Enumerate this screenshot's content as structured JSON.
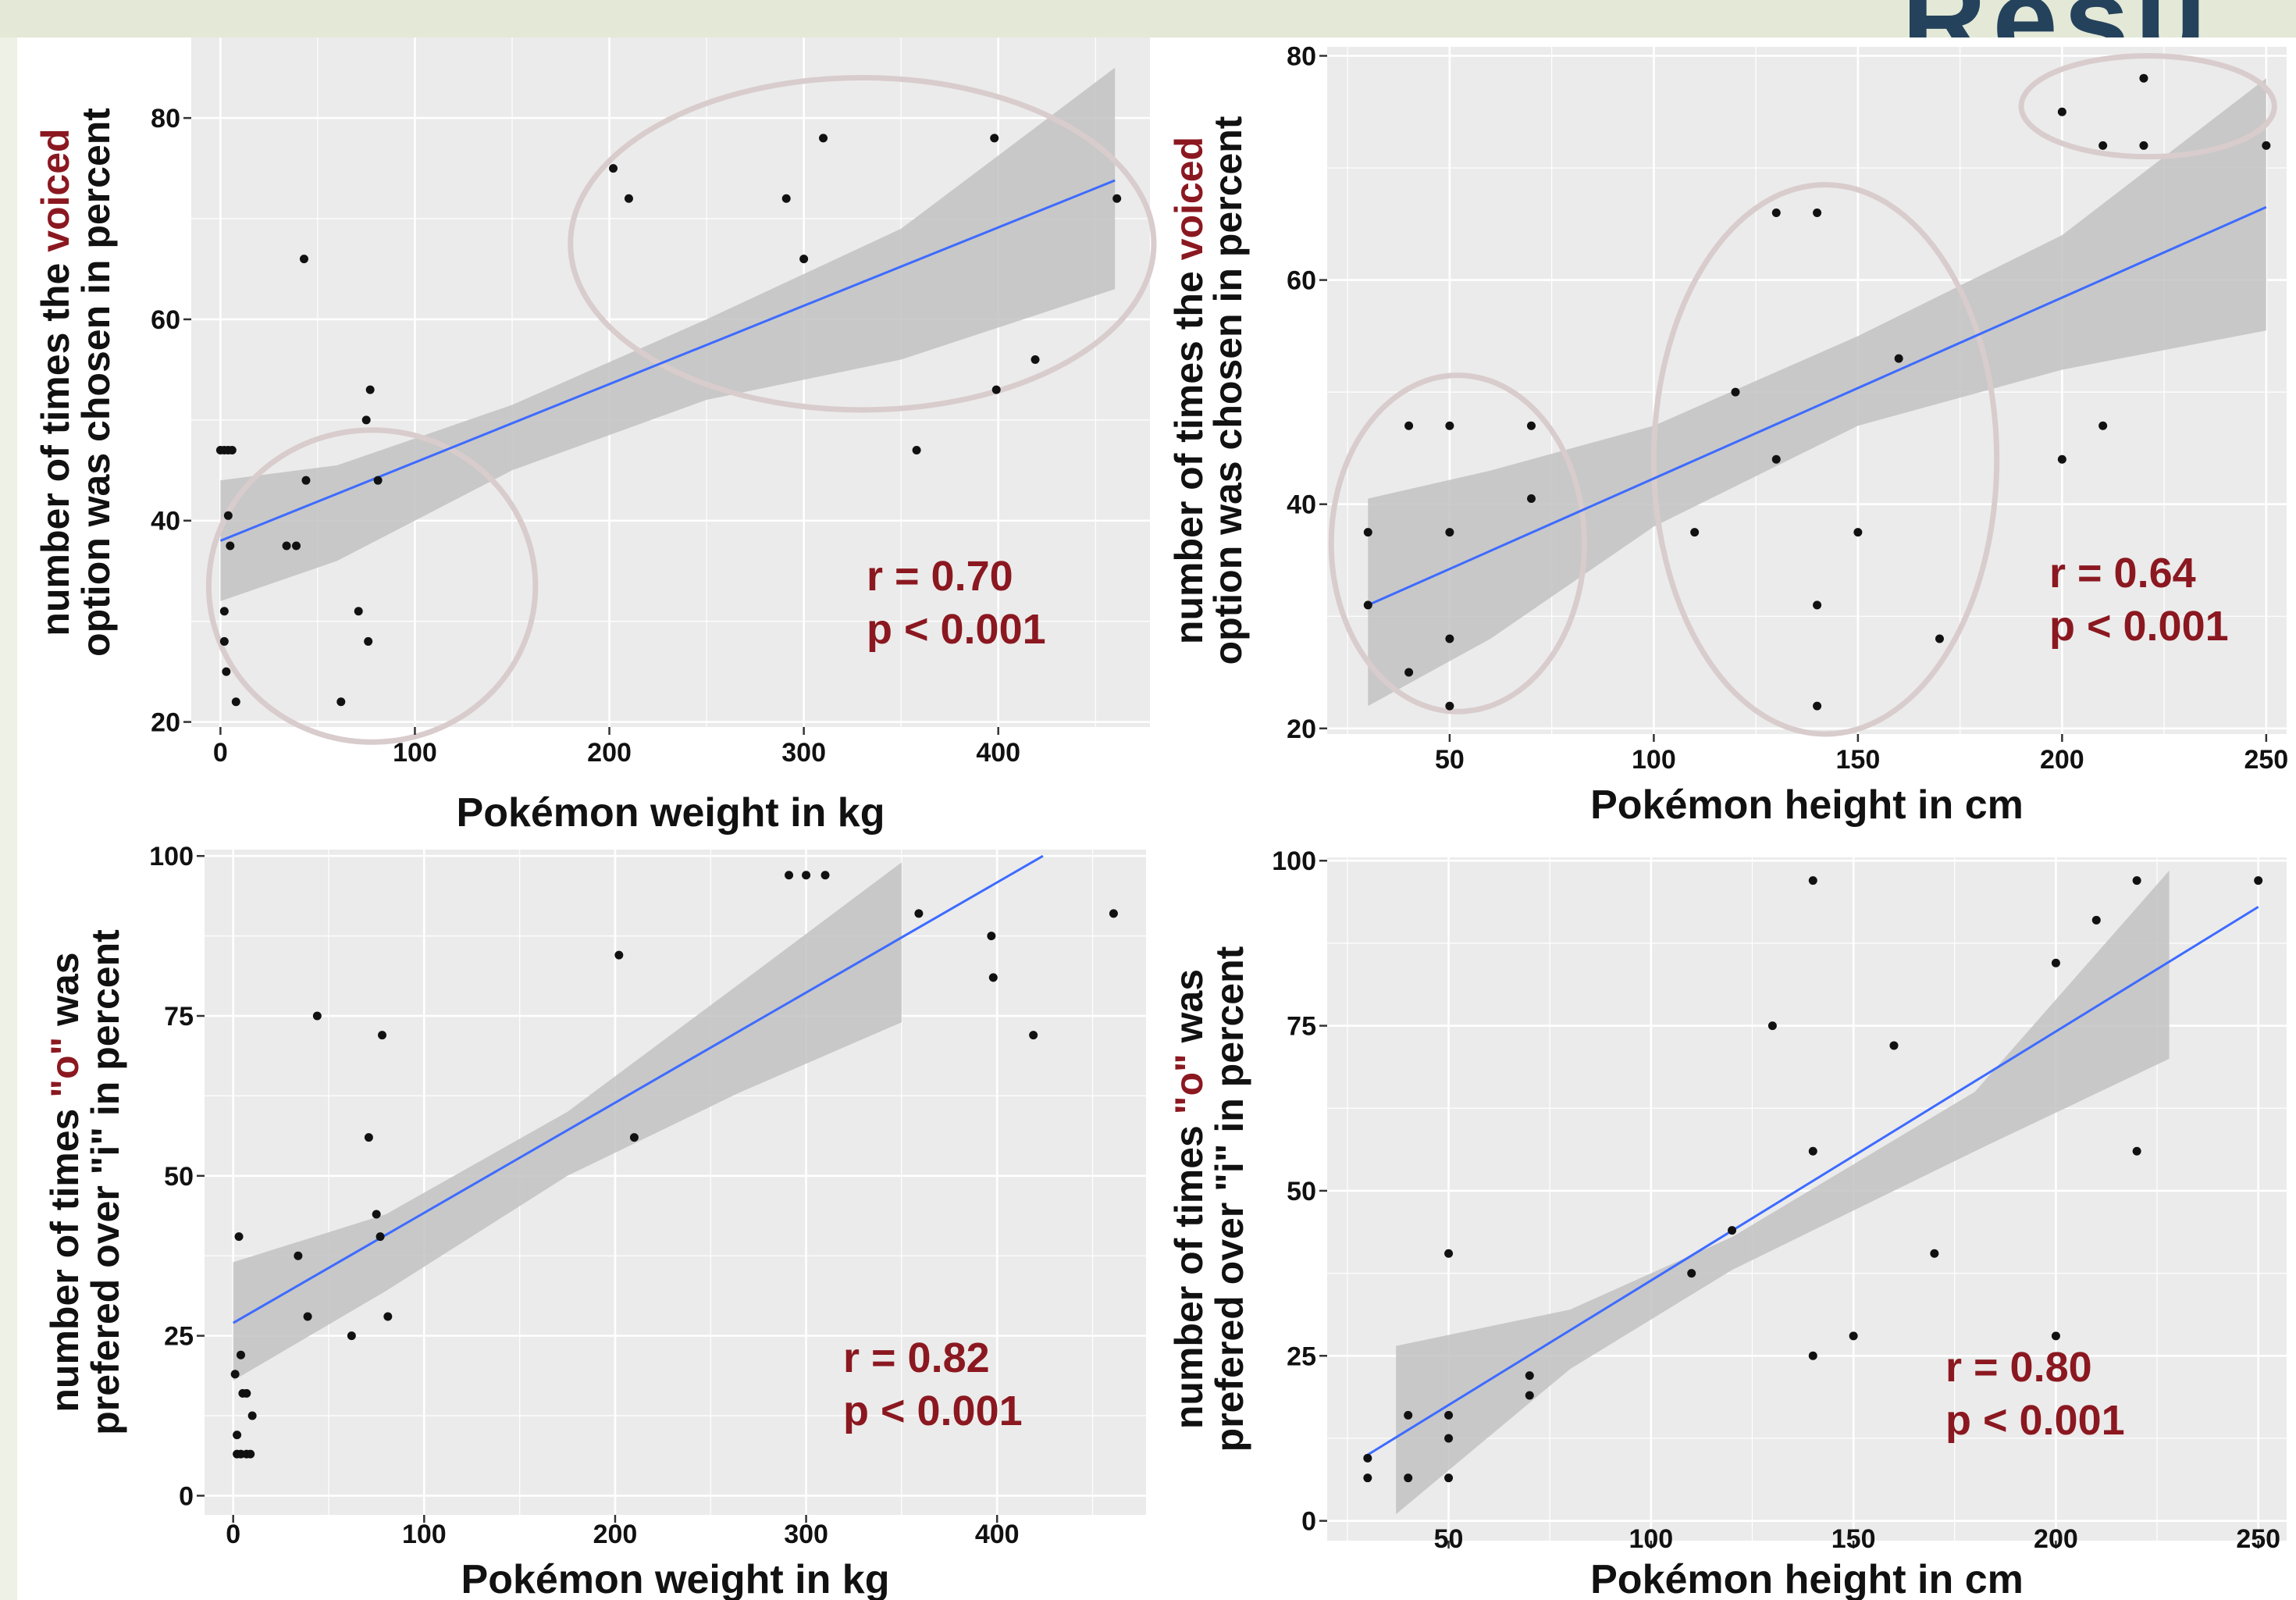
{
  "header": {
    "corner_text": "Resu"
  },
  "colors": {
    "panel_bg": "#ebebeb",
    "grid": "#ffffff",
    "point": "#111111",
    "fit_line": "#3d6bff",
    "band": "#c2c2c2",
    "ellipse": "#d9cccc",
    "stats": "#8b1820",
    "label": "#111111"
  },
  "chart_data": [
    {
      "id": "top-left",
      "type": "scatter",
      "xlabel": "Pokémon weight in kg",
      "ylabel_line1": [
        {
          "text": "number of times the ",
          "color": "#111111"
        },
        {
          "text": "voiced",
          "color": "#8b1820"
        }
      ],
      "ylabel_line2": "option was chosen in percent",
      "xlim": [
        -15,
        478
      ],
      "ylim": [
        19.5,
        88
      ],
      "xticks": [
        0,
        100,
        200,
        300,
        400
      ],
      "yticks": [
        20,
        40,
        60,
        80
      ],
      "stats": [
        "r = 0.70",
        "p < 0.001"
      ],
      "points": [
        [
          0,
          47
        ],
        [
          2,
          47
        ],
        [
          4,
          47
        ],
        [
          6,
          47
        ],
        [
          2,
          31
        ],
        [
          2,
          28
        ],
        [
          3,
          25
        ],
        [
          4,
          40.5
        ],
        [
          5,
          37.5
        ],
        [
          8,
          22
        ],
        [
          34,
          37.5
        ],
        [
          39,
          37.5
        ],
        [
          43,
          66
        ],
        [
          44,
          44
        ],
        [
          62,
          22
        ],
        [
          71,
          31
        ],
        [
          75,
          50
        ],
        [
          76,
          28
        ],
        [
          77,
          53
        ],
        [
          81,
          44
        ],
        [
          202,
          75
        ],
        [
          210,
          72
        ],
        [
          291,
          72
        ],
        [
          300,
          66
        ],
        [
          310,
          78
        ],
        [
          358,
          47
        ],
        [
          398,
          78
        ],
        [
          399,
          53
        ],
        [
          419,
          56
        ],
        [
          461,
          72
        ]
      ],
      "fit": {
        "x": [
          0,
          460
        ],
        "y": [
          38,
          73.8
        ]
      },
      "band": {
        "x": [
          0,
          60,
          150,
          250,
          350,
          460
        ],
        "lower": [
          32,
          36,
          45,
          52,
          56,
          63
        ],
        "upper": [
          44,
          45.5,
          51.5,
          60,
          69,
          85
        ]
      },
      "ellipses": [
        {
          "cx": 78,
          "cy": 33.5,
          "rx": 84,
          "ry": 15.5
        },
        {
          "cx": 330,
          "cy": 67.5,
          "rx": 150,
          "ry": 16.5
        }
      ]
    },
    {
      "id": "top-right",
      "type": "scatter",
      "xlabel": "Pokémon height in cm",
      "ylabel_line1": [
        {
          "text": "number of times the ",
          "color": "#111111"
        },
        {
          "text": "voiced",
          "color": "#8b1820"
        }
      ],
      "ylabel_line2": "option was chosen in percent",
      "xlim": [
        20,
        255
      ],
      "ylim": [
        19.5,
        80.8
      ],
      "xticks": [
        50,
        100,
        150,
        200,
        250
      ],
      "yticks": [
        20,
        40,
        60,
        80
      ],
      "stats": [
        "r = 0.64",
        "p < 0.001"
      ],
      "points": [
        [
          30,
          37.5
        ],
        [
          30,
          31
        ],
        [
          40,
          47
        ],
        [
          40,
          25
        ],
        [
          50,
          47
        ],
        [
          50,
          37.5
        ],
        [
          50,
          28
        ],
        [
          50,
          22
        ],
        [
          70,
          47
        ],
        [
          70,
          40.5
        ],
        [
          110,
          37.5
        ],
        [
          120,
          50
        ],
        [
          130,
          44
        ],
        [
          130,
          66
        ],
        [
          140,
          66
        ],
        [
          140,
          31
        ],
        [
          140,
          22
        ],
        [
          150,
          37.5
        ],
        [
          160,
          53
        ],
        [
          170,
          28
        ],
        [
          200,
          75
        ],
        [
          200,
          44
        ],
        [
          210,
          72
        ],
        [
          210,
          47
        ],
        [
          220,
          78
        ],
        [
          220,
          72
        ],
        [
          250,
          72
        ]
      ],
      "fit": {
        "x": [
          30,
          250
        ],
        "y": [
          31,
          66.5
        ]
      },
      "band": {
        "x": [
          30,
          60,
          100,
          150,
          200,
          250
        ],
        "lower": [
          22,
          28,
          38,
          47,
          52,
          55.5
        ],
        "upper": [
          40.5,
          43,
          47,
          55,
          64,
          78
        ]
      },
      "ellipses": [
        {
          "cx": 52,
          "cy": 36.5,
          "rx": 31,
          "ry": 15
        },
        {
          "cx": 142,
          "cy": 44,
          "rx": 42,
          "ry": 24.5
        },
        {
          "cx": 221,
          "cy": 75.5,
          "rx": 31,
          "ry": 4.5
        }
      ]
    },
    {
      "id": "bottom-left",
      "type": "scatter",
      "xlabel": "Pokémon weight in kg",
      "ylabel_line1": [
        {
          "text": "number of times ",
          "color": "#111111"
        },
        {
          "text": "\"o\"",
          "color": "#8b1820"
        },
        {
          "text": " was",
          "color": "#111111"
        }
      ],
      "ylabel_line2": "prefered over \"i\" in percent",
      "xlim": [
        -15,
        478
      ],
      "ylim": [
        -3,
        101
      ],
      "xticks": [
        0,
        100,
        200,
        300,
        400
      ],
      "yticks": [
        0,
        25,
        50,
        75,
        100
      ],
      "stats": [
        "r = 0.82",
        "p < 0.001"
      ],
      "points": [
        [
          1,
          19
        ],
        [
          2,
          9.5
        ],
        [
          2,
          6.5
        ],
        [
          3,
          40.5
        ],
        [
          4,
          22
        ],
        [
          4,
          6.5
        ],
        [
          5,
          16
        ],
        [
          7,
          16
        ],
        [
          7,
          6.5
        ],
        [
          9,
          6.5
        ],
        [
          10,
          12.5
        ],
        [
          34,
          37.5
        ],
        [
          39,
          28
        ],
        [
          44,
          75
        ],
        [
          62,
          25
        ],
        [
          71,
          56
        ],
        [
          75,
          44
        ],
        [
          77,
          40.5
        ],
        [
          78,
          72
        ],
        [
          81,
          28
        ],
        [
          202,
          84.5
        ],
        [
          210,
          56
        ],
        [
          291,
          97
        ],
        [
          300,
          97
        ],
        [
          310,
          97
        ],
        [
          359,
          91
        ],
        [
          397,
          87.5
        ],
        [
          398,
          81
        ],
        [
          419,
          72
        ],
        [
          461,
          91
        ]
      ],
      "fit": {
        "x": [
          0,
          424
        ],
        "y": [
          27,
          100
        ]
      },
      "band": {
        "x": [
          0,
          80,
          175,
          265,
          350
        ],
        "lower": [
          18,
          32,
          50,
          63,
          74
        ],
        "upper": [
          36.5,
          44,
          60,
          80,
          99
        ]
      },
      "ellipses": []
    },
    {
      "id": "bottom-right",
      "type": "scatter",
      "xlabel": "Pokémon height in cm",
      "ylabel_line1": [
        {
          "text": "number of times ",
          "color": "#111111"
        },
        {
          "text": "\"o\"",
          "color": "#8b1820"
        },
        {
          "text": " was",
          "color": "#111111"
        }
      ],
      "ylabel_line2": "prefered over \"i\" in percent",
      "xlim": [
        20,
        257
      ],
      "ylim": [
        -3,
        100.5
      ],
      "xticks": [
        50,
        100,
        150,
        200,
        250
      ],
      "yticks": [
        0,
        25,
        50,
        75,
        100
      ],
      "stats": [
        "r = 0.80",
        "p < 0.001"
      ],
      "points": [
        [
          30,
          9.5
        ],
        [
          30,
          6.5
        ],
        [
          40,
          16
        ],
        [
          40,
          6.5
        ],
        [
          50,
          40.5
        ],
        [
          50,
          16
        ],
        [
          50,
          12.5
        ],
        [
          50,
          6.5
        ],
        [
          70,
          22
        ],
        [
          70,
          19
        ],
        [
          110,
          37.5
        ],
        [
          120,
          44
        ],
        [
          130,
          75
        ],
        [
          140,
          97
        ],
        [
          140,
          56
        ],
        [
          140,
          25
        ],
        [
          150,
          28
        ],
        [
          160,
          72
        ],
        [
          170,
          40.5
        ],
        [
          200,
          84.5
        ],
        [
          200,
          28
        ],
        [
          210,
          91
        ],
        [
          220,
          97
        ],
        [
          220,
          56
        ],
        [
          250,
          97
        ]
      ],
      "fit": {
        "x": [
          30,
          250
        ],
        "y": [
          10,
          93
        ]
      },
      "band": {
        "x": [
          37,
          80,
          120,
          180,
          228
        ],
        "lower": [
          1,
          23,
          38,
          56,
          70
        ],
        "upper": [
          26.5,
          32,
          43,
          65,
          98.5
        ]
      },
      "ellipses": []
    }
  ]
}
